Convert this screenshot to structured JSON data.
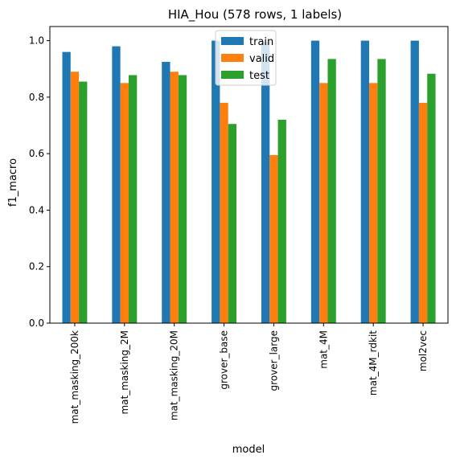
{
  "chart_data": {
    "type": "bar",
    "title": "HIA_Hou (578 rows, 1 labels)",
    "xlabel": "model",
    "ylabel": "f1_macro",
    "categories": [
      "mat_masking_200k",
      "mat_masking_2M",
      "mat_masking_20M",
      "grover_base",
      "grover_large",
      "mat_4M",
      "mat_4M_rdkit",
      "mol2vec"
    ],
    "series": [
      {
        "name": "train",
        "color": "#1f77b4",
        "values": [
          0.96,
          0.98,
          0.925,
          1.0,
          0.995,
          1.0,
          1.0,
          1.0
        ]
      },
      {
        "name": "valid",
        "color": "#ff7f0e",
        "values": [
          0.89,
          0.85,
          0.89,
          0.78,
          0.595,
          0.85,
          0.85,
          0.78
        ]
      },
      {
        "name": "test",
        "color": "#2ca02c",
        "values": [
          0.855,
          0.878,
          0.878,
          0.705,
          0.72,
          0.935,
          0.935,
          0.883
        ]
      }
    ],
    "ylim": [
      0,
      1.05
    ],
    "yticks": [
      "0.0",
      "0.2",
      "0.4",
      "0.6",
      "0.8",
      "1.0"
    ],
    "grid": false,
    "legend_position": "top-center"
  }
}
